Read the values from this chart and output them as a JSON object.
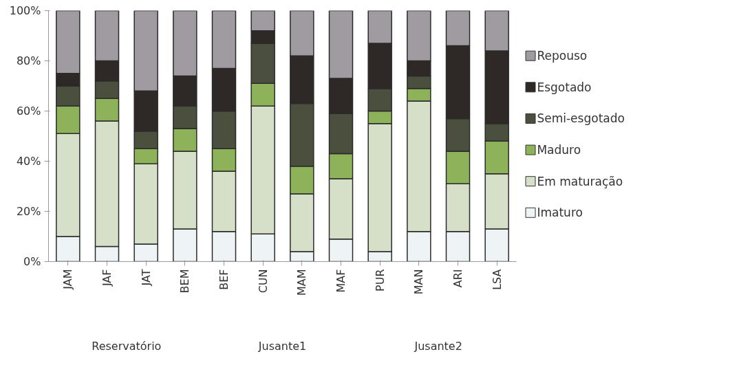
{
  "chart_data": {
    "type": "bar",
    "stacked": true,
    "categories": [
      "JAM",
      "JAF",
      "JAT",
      "BEM",
      "BEF",
      "CUN",
      "MAM",
      "MAF",
      "PUR",
      "MAN",
      "ARI",
      "LSA"
    ],
    "series": [
      {
        "name": "Imaturo",
        "color": "#eef3f5",
        "values": [
          10,
          6,
          7,
          13,
          12,
          11,
          4,
          9,
          4,
          12,
          12,
          13
        ]
      },
      {
        "name": "Em maturação",
        "color": "#d6dfc8",
        "values": [
          41,
          50,
          32,
          31,
          24,
          51,
          23,
          24,
          51,
          52,
          19,
          22
        ]
      },
      {
        "name": "Maduro",
        "color": "#8db25a",
        "values": [
          11,
          9,
          6,
          9,
          9,
          9,
          11,
          10,
          5,
          5,
          13,
          13
        ]
      },
      {
        "name": "Semi-esgotado",
        "color": "#4b4f3e",
        "values": [
          8,
          7,
          7,
          9,
          15,
          16,
          25,
          16,
          9,
          5,
          13,
          7
        ]
      },
      {
        "name": "Esgotado",
        "color": "#2e2826",
        "values": [
          5,
          8,
          16,
          12,
          17,
          5,
          19,
          14,
          18,
          6,
          29,
          29
        ]
      },
      {
        "name": "Repouso",
        "color": "#a09ba0",
        "values": [
          25,
          20,
          32,
          26,
          23,
          8,
          18,
          27,
          13,
          20,
          14,
          16
        ]
      }
    ],
    "ylim": [
      0,
      100
    ],
    "yticks": [
      {
        "value": 0,
        "label": "0%"
      },
      {
        "value": 20,
        "label": "20%"
      },
      {
        "value": 40,
        "label": "40%"
      },
      {
        "value": 60,
        "label": "60%"
      },
      {
        "value": 80,
        "label": "80%"
      },
      {
        "value": 100,
        "label": "100%"
      }
    ],
    "grid": false,
    "legend": "right",
    "annotations": [
      "Reservatório",
      "Jusante1",
      "Jusante2"
    ]
  }
}
